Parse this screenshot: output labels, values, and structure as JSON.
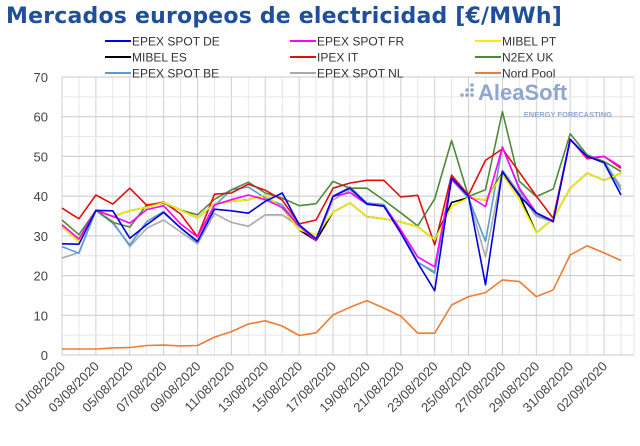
{
  "title": "Mercados europeos de electricidad [€/MWh]",
  "logo": {
    "name": "AleaSoft",
    "tagline": "ENERGY FORECASTING",
    "color": "#8fa6cf"
  },
  "chart_data": {
    "type": "line",
    "title": "Mercados europeos de electricidad [€/MWh]",
    "xlabel": "",
    "ylabel": "",
    "ylim": [
      0,
      70
    ],
    "yticks": [
      0,
      10,
      20,
      30,
      40,
      50,
      60,
      70
    ],
    "grid": true,
    "legend_position": "top",
    "x": [
      "01/08/2020",
      "02/08/2020",
      "03/08/2020",
      "04/08/2020",
      "05/08/2020",
      "06/08/2020",
      "07/08/2020",
      "08/08/2020",
      "09/08/2020",
      "10/08/2020",
      "11/08/2020",
      "12/08/2020",
      "13/08/2020",
      "14/08/2020",
      "15/08/2020",
      "16/08/2020",
      "17/08/2020",
      "18/08/2020",
      "19/08/2020",
      "20/08/2020",
      "21/08/2020",
      "22/08/2020",
      "23/08/2020",
      "24/08/2020",
      "25/08/2020",
      "26/08/2020",
      "27/08/2020",
      "28/08/2020",
      "29/08/2020",
      "30/08/2020",
      "31/08/2020",
      "01/09/2020",
      "02/09/2020",
      "03/09/2020"
    ],
    "xtick_labels": [
      "01/08/2020",
      "03/08/2020",
      "05/08/2020",
      "07/08/2020",
      "09/08/2020",
      "11/08/2020",
      "13/08/2020",
      "15/08/2020",
      "17/08/2020",
      "19/08/2020",
      "21/08/2020",
      "23/08/2020",
      "25/08/2020",
      "27/08/2020",
      "29/08/2020",
      "31/08/2020",
      "02/09/2020"
    ],
    "series": [
      {
        "name": "EPEX SPOT DE",
        "color": "#0000e0",
        "values": [
          28,
          27.9,
          36.4,
          36.3,
          29.4,
          32.8,
          35.9,
          32,
          28.6,
          36.7,
          36.3,
          35.7,
          38.7,
          40.8,
          32.8,
          29.2,
          39.9,
          42,
          38,
          37.5,
          30.7,
          23.2,
          16.2,
          44.6,
          40,
          17.7,
          46.2,
          40,
          35.8,
          33.6,
          54.2,
          50,
          48.4,
          40.3
        ]
      },
      {
        "name": "EPEX SPOT FR",
        "color": "#ff00ff",
        "values": [
          32.8,
          29.2,
          36.4,
          34.9,
          33.2,
          36.6,
          37.6,
          33,
          29.7,
          37.8,
          39.1,
          40.3,
          39.1,
          37.2,
          32.5,
          28.8,
          39.9,
          40.9,
          38,
          37.5,
          31.5,
          24.7,
          22.2,
          44.3,
          40,
          37.4,
          52.3,
          42,
          35.8,
          33.8,
          54.4,
          49.6,
          50,
          47.4
        ]
      },
      {
        "name": "MIBEL PT",
        "color": "#f0f000",
        "values": [
          32.3,
          28.6,
          36.4,
          34.9,
          36.3,
          37.2,
          38.4,
          36.5,
          34.5,
          38.1,
          38.7,
          39.1,
          40.3,
          37,
          31.5,
          30.3,
          36,
          38.3,
          34.8,
          34.3,
          33.5,
          32.3,
          29,
          37.4,
          39.6,
          39,
          45.5,
          39,
          30.8,
          34.3,
          42,
          45.8,
          44,
          45.8
        ]
      },
      {
        "name": "MIBEL ES",
        "color": "#000000",
        "values": [
          32.3,
          28.6,
          36.4,
          34.9,
          36.3,
          37.2,
          38.4,
          36.5,
          34.5,
          38.1,
          38.7,
          39.1,
          40.3,
          37,
          31.5,
          28.8,
          36,
          38.3,
          34.8,
          34.3,
          33.5,
          32.3,
          29,
          38.4,
          39.6,
          39,
          45.8,
          40.3,
          30.8,
          34.3,
          42,
          45.8,
          44,
          45.8
        ]
      },
      {
        "name": "IPEX IT",
        "color": "#e01010",
        "values": [
          37,
          34.3,
          40.3,
          38,
          42,
          37.7,
          38.5,
          35.5,
          29.8,
          40.5,
          40.8,
          43,
          41.5,
          39,
          33,
          34,
          42,
          43.3,
          44,
          44,
          39.8,
          40.2,
          27.7,
          45.3,
          40.3,
          49,
          51.9,
          46,
          40,
          34.4,
          54.4,
          49.4,
          50,
          47
        ]
      },
      {
        "name": "N2EX UK",
        "color": "#4f8a3c",
        "values": [
          34,
          30.3,
          36.4,
          33.4,
          32.2,
          37.8,
          38.2,
          36.5,
          35.3,
          39.2,
          41.6,
          43.5,
          40.8,
          39.5,
          37.6,
          38.1,
          43.7,
          42,
          42,
          39,
          35.8,
          32.5,
          39.3,
          54,
          39.9,
          41.6,
          61.3,
          43.7,
          39.9,
          41.8,
          55.7,
          50.4,
          48.7,
          46.2
        ]
      },
      {
        "name": "EPEX SPOT BE",
        "color": "#5b9bd5",
        "values": [
          27.3,
          25.6,
          36.4,
          33.2,
          27.7,
          33.6,
          36.1,
          32,
          28.3,
          37.6,
          41.6,
          42.3,
          39.5,
          37.8,
          32.5,
          28.8,
          40,
          42.3,
          38.3,
          37.9,
          31.5,
          23.4,
          20.6,
          44.3,
          39.5,
          28.6,
          52.5,
          41.6,
          35.3,
          33.6,
          54.4,
          50,
          48.7,
          41.6
        ]
      },
      {
        "name": "EPEX SPOT NL",
        "color": "#a9a9a9",
        "values": [
          24.4,
          25.8,
          36.4,
          33.6,
          27.3,
          31.9,
          34,
          31,
          28,
          35.6,
          33.4,
          32.4,
          35.3,
          35.3,
          32.4,
          28.8,
          39,
          41.5,
          37.9,
          37.5,
          31.2,
          23.3,
          21,
          44.1,
          39.5,
          24.7,
          46.6,
          40.8,
          34.9,
          33.5,
          54.4,
          50,
          48.7,
          42.4
        ]
      },
      {
        "name": "Nord Pool",
        "color": "#ed7d31",
        "values": [
          1.5,
          1.5,
          1.5,
          1.8,
          1.9,
          2.4,
          2.5,
          2.3,
          2.4,
          4.5,
          5.9,
          7.8,
          8.6,
          7.3,
          4.9,
          5.6,
          10.1,
          12,
          13.7,
          11.8,
          9.8,
          5.5,
          5.5,
          12.6,
          14.7,
          15.7,
          18.9,
          18.5,
          14.7,
          16.4,
          25.2,
          27.5,
          25.7,
          23.8
        ]
      }
    ]
  }
}
